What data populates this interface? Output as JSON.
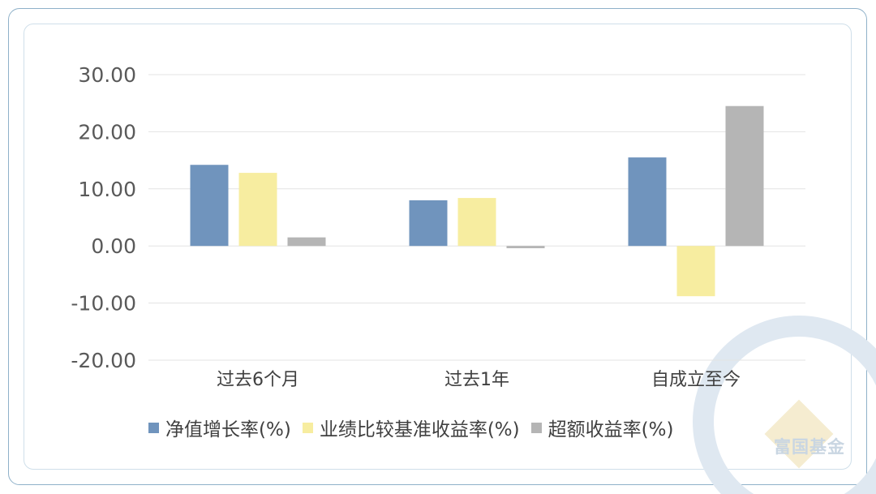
{
  "colors": {
    "series1": "#7094bd",
    "series2": "#f7eda0",
    "series3": "#b5b5b5",
    "grid": "#e3e3e3",
    "watermark_logo": "#dfe8f1",
    "watermark_logo_accent": "#f5ecd0"
  },
  "watermark": {
    "text": "富国基金"
  },
  "chart_data": {
    "type": "bar",
    "categories": [
      "过去6个月",
      "过去1年",
      "自成立至今"
    ],
    "series": [
      {
        "name": "净值增长率(%)",
        "values": [
          14.2,
          8.0,
          15.5
        ]
      },
      {
        "name": "业绩比较基准收益率(%)",
        "values": [
          12.8,
          8.4,
          -8.8
        ]
      },
      {
        "name": "超额收益率(%)",
        "values": [
          1.5,
          -0.4,
          24.5
        ]
      }
    ],
    "yticks": [
      "30.00",
      "20.00",
      "10.00",
      "0.00",
      "-10.00",
      "-20.00"
    ],
    "ylim": [
      -20,
      30
    ],
    "grid": true,
    "legend": "bottom"
  }
}
